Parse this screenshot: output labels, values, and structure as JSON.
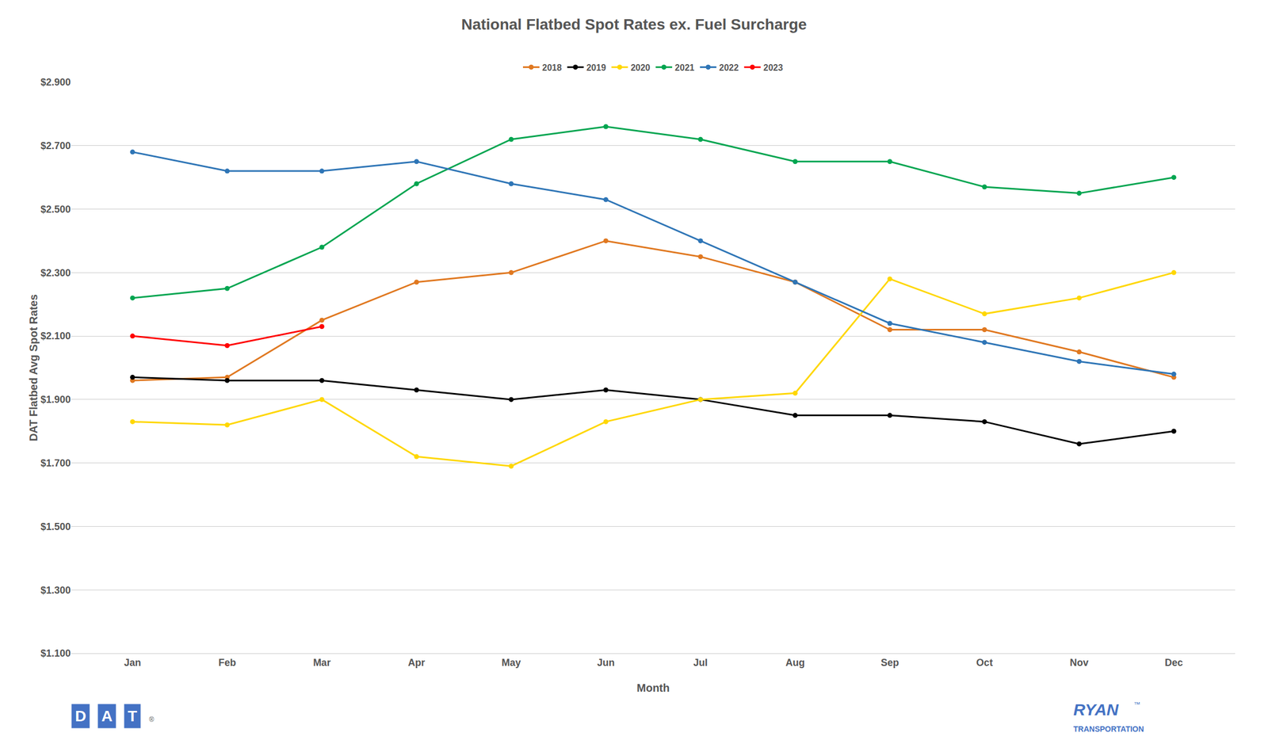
{
  "chart_data": {
    "type": "line",
    "title": "National Flatbed Spot Rates ex. Fuel Surcharge",
    "xlabel": "Month",
    "ylabel": "DAT Flatbed Avg Spot Rates",
    "categories": [
      "Jan",
      "Feb",
      "Mar",
      "Apr",
      "May",
      "Jun",
      "Jul",
      "Aug",
      "Sep",
      "Oct",
      "Nov",
      "Dec"
    ],
    "series": [
      {
        "name": "2018",
        "color": "#E07820",
        "values": [
          1.96,
          1.97,
          2.15,
          2.27,
          2.3,
          2.4,
          2.35,
          2.27,
          2.12,
          2.12,
          2.05,
          1.97
        ]
      },
      {
        "name": "2019",
        "color": "#000000",
        "values": [
          1.97,
          1.96,
          1.96,
          1.93,
          1.9,
          1.93,
          1.9,
          1.85,
          1.85,
          1.83,
          1.76,
          1.8
        ]
      },
      {
        "name": "2020",
        "color": "#FFD700",
        "values": [
          1.83,
          1.82,
          1.9,
          1.72,
          1.69,
          1.83,
          1.9,
          1.92,
          2.28,
          2.17,
          2.22,
          2.3
        ]
      },
      {
        "name": "2021",
        "color": "#00A550",
        "values": [
          2.22,
          2.25,
          2.38,
          2.58,
          2.72,
          2.76,
          2.72,
          2.65,
          2.65,
          2.57,
          2.55,
          2.6
        ]
      },
      {
        "name": "2022",
        "color": "#2E75B6",
        "values": [
          2.68,
          2.62,
          2.62,
          2.65,
          2.58,
          2.53,
          2.4,
          2.27,
          2.14,
          2.08,
          2.02,
          1.98
        ]
      },
      {
        "name": "2023",
        "color": "#FF0000",
        "values": [
          2.1,
          2.07,
          2.13,
          null,
          null,
          null,
          null,
          null,
          null,
          null,
          null,
          null
        ]
      }
    ],
    "ylim": [
      1.1,
      2.9
    ],
    "yticks": [
      {
        "value": 1.1,
        "label": "$1.100"
      },
      {
        "value": 1.3,
        "label": "$1.300"
      },
      {
        "value": 1.5,
        "label": "$1.500"
      },
      {
        "value": 1.7,
        "label": "$1.700"
      },
      {
        "value": 1.9,
        "label": "$1.900"
      },
      {
        "value": 2.1,
        "label": "$2.100"
      },
      {
        "value": 2.3,
        "label": "$2.300"
      },
      {
        "value": 2.5,
        "label": "$2.500"
      },
      {
        "value": 2.7,
        "label": "$2.700"
      },
      {
        "value": 2.9,
        "label": "$2.900"
      }
    ],
    "grid": true,
    "legend": "top",
    "marker": "circle",
    "line_style": "solid",
    "annotations": [
      "D",
      "A",
      "T",
      "®",
      "RYAN",
      "TRANSPORTATION",
      "™"
    ]
  }
}
